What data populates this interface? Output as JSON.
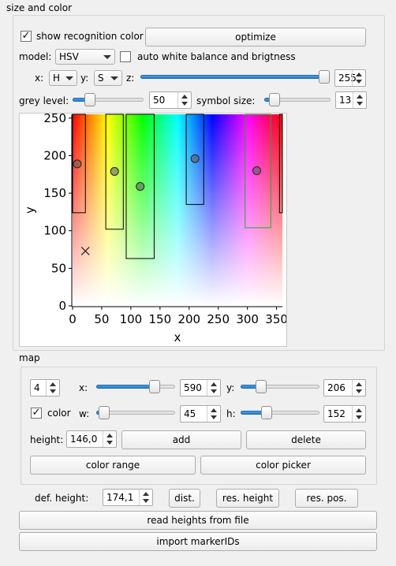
{
  "size_color": {
    "title": "size and color",
    "show_recognition_color": {
      "label": "show recognition color",
      "checked": true
    },
    "optimize_label": "optimize",
    "model_label": "model:",
    "model_value": "HSV",
    "auto_wb": {
      "label": "auto white balance and brigtness",
      "checked": false
    },
    "x_label": "x:",
    "x_value": "H",
    "y_label": "y:",
    "y_value": "S",
    "z_label": "z:",
    "z_slider": 1.0,
    "z_value": "255",
    "grey_label": "grey level:",
    "grey_slider": 0.2,
    "grey_value": "50",
    "symbol_label": "symbol size:",
    "symbol_slider": 0.08,
    "symbol_value": "13"
  },
  "chart_data": {
    "type": "scatter",
    "xlabel": "x",
    "ylabel": "y",
    "xlim": [
      0,
      360
    ],
    "ylim": [
      0,
      255
    ],
    "xticks": [
      "0",
      "50",
      "100",
      "150",
      "200",
      "250",
      "300",
      "350"
    ],
    "yticks": [
      "0",
      "50",
      "100",
      "150",
      "200",
      "250"
    ],
    "rects": [
      {
        "x0": 0,
        "x1": 22,
        "y0": 124,
        "y1": 255,
        "color": "#000000"
      },
      {
        "x0": 57,
        "x1": 87,
        "y0": 102,
        "y1": 255,
        "color": "#000000"
      },
      {
        "x0": 92,
        "x1": 140,
        "y0": 63,
        "y1": 255,
        "color": "#000000"
      },
      {
        "x0": 195,
        "x1": 225,
        "y0": 135,
        "y1": 255,
        "color": "#000000"
      },
      {
        "x0": 296,
        "x1": 340,
        "y0": 104,
        "y1": 255,
        "color": "#22aa22"
      },
      {
        "x0": 355,
        "x1": 360,
        "y0": 124,
        "y1": 255,
        "color": "#000000"
      }
    ],
    "points": [
      {
        "x": 8,
        "y": 189
      },
      {
        "x": 72,
        "y": 179
      },
      {
        "x": 116,
        "y": 159
      },
      {
        "x": 210,
        "y": 196
      },
      {
        "x": 316,
        "y": 180
      }
    ],
    "cross": {
      "x": 22,
      "y": 73
    }
  },
  "map": {
    "title": "map",
    "index_value": "4",
    "x_label": "x:",
    "x_slider": 0.78,
    "x_value": "590",
    "y_label": "y:",
    "y_slider": 0.22,
    "y_value": "206",
    "color_cb": {
      "label": "color",
      "checked": true
    },
    "w_label": "w:",
    "w_slider": 0.03,
    "w_value": "45",
    "h_label": "h:",
    "h_slider": 0.3,
    "h_value": "152",
    "height_label": "height:",
    "height_value": "146,0",
    "add_label": "add",
    "delete_label": "delete",
    "color_range_label": "color range",
    "color_picker_label": "color picker"
  },
  "bottom": {
    "def_height_label": "def. height:",
    "def_height_value": "174,1",
    "dist_label": "dist.",
    "res_height_label": "res. height",
    "res_pos_label": "res. pos.",
    "read_heights_label": "read heights from file",
    "import_marker_label": "import markerIDs"
  }
}
